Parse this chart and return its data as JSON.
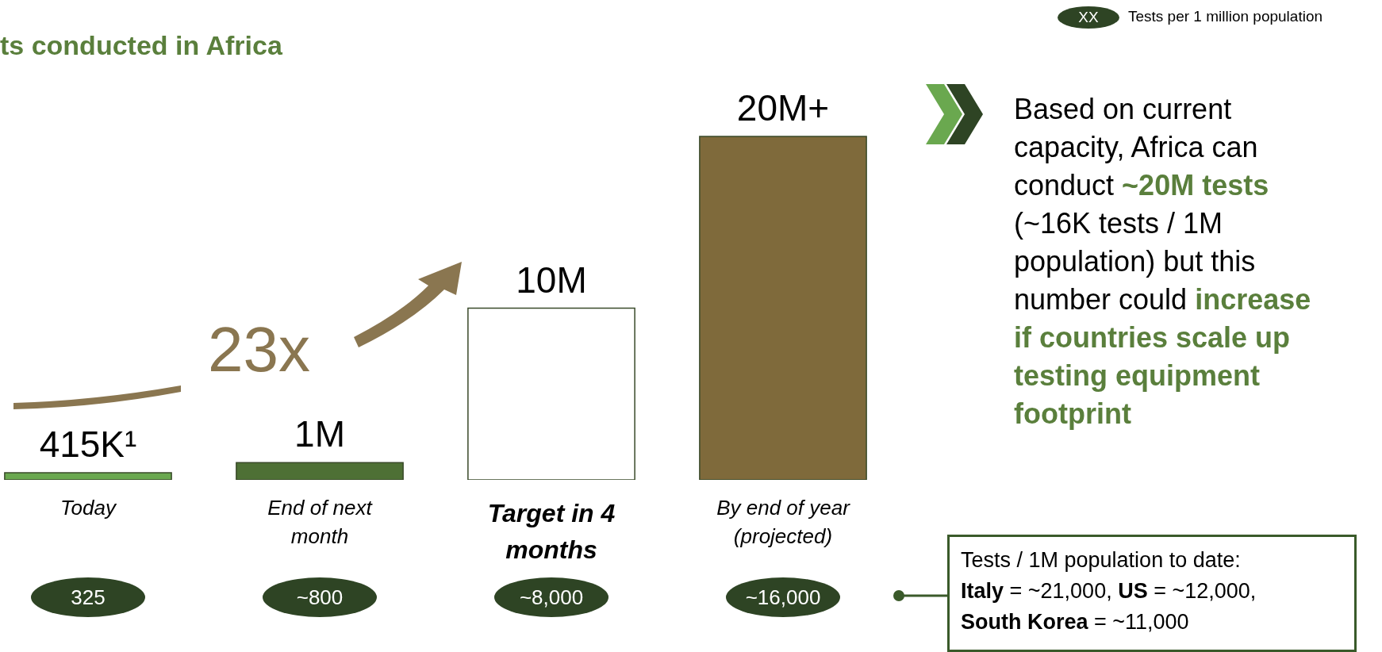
{
  "chart_data": {
    "type": "bar",
    "title": "ts conducted in Africa",
    "categories": [
      "Today",
      "End of next month",
      "Target in 4 months",
      "By end of year (projected)"
    ],
    "values": [
      415000,
      1000000,
      10000000,
      20000000
    ],
    "value_labels": [
      "415K¹",
      "1M",
      "10M",
      "20M+"
    ],
    "colors": [
      "#6aa84f",
      "#4e7035",
      "#ffffff",
      "#7f6a3b"
    ],
    "annotations": [
      "325",
      "~800",
      "~8,000",
      "~16,000",
      "23x",
      "XX",
      "Tests per 1 million population",
      "Based on current capacity, Africa can conduct ",
      "~20M tests",
      " (~16K tests / 1M population) but this number could ",
      "increase if countries scale up testing equipment footprint",
      "Tests / 1M population to date:",
      "Italy",
      " = ~21,000, ",
      "US",
      " = ~12,000, ",
      "South Korea",
      " = ~11,000"
    ]
  }
}
